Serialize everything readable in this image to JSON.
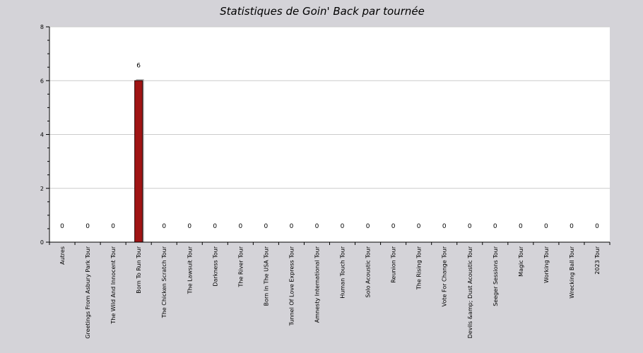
{
  "chart_data": {
    "type": "bar",
    "title": "Statistiques de Goin' Back par tournée",
    "xlabel": "",
    "ylabel": "",
    "ylim": [
      0,
      8
    ],
    "yticks": [
      0,
      2,
      4,
      6,
      8
    ],
    "grid": true,
    "categories": [
      "Autres",
      "Greetings From Asbury Park Tour",
      "The Wild And Innocent Tour",
      "Born To Run Tour",
      "The Chicken Scratch Tour",
      "The Lawsuit Tour",
      "Darkness Tour",
      "The River Tour",
      "Born In The USA Tour",
      "Tunnel Of Love Express Tour",
      "Amnesty International Tour",
      "Human Touch Tour",
      "Solo Acoustic Tour",
      "Reunion Tour",
      "The Rising Tour",
      "Vote For Change Tour",
      "Devils &amp; Dust Acoustic Tour",
      "Seeger Sessions Tour",
      "Magic Tour",
      "Working Tour",
      "Wrecking Ball Tour",
      "2023 Tour"
    ],
    "values": [
      0,
      0,
      0,
      6,
      0,
      0,
      0,
      0,
      0,
      0,
      0,
      0,
      0,
      0,
      0,
      0,
      0,
      0,
      0,
      0,
      0,
      0
    ],
    "value_labels": [
      "0",
      "0",
      "0",
      "6",
      "0",
      "0",
      "0",
      "0",
      "0",
      "0",
      "0",
      "0",
      "0",
      "0",
      "0",
      "0",
      "0",
      "0",
      "0",
      "0",
      "0",
      "0"
    ],
    "colors": {
      "bar": "#a01414",
      "bar_edge": "#2a0000",
      "shadow": "#a8a8a8",
      "grid": "#cccccc",
      "plot_bg": "#ffffff",
      "page_bg": "#d4d3d8"
    }
  }
}
